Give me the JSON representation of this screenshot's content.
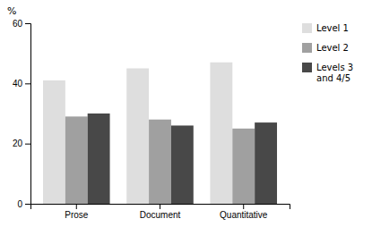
{
  "chart_data": {
    "type": "bar",
    "y_label": "%",
    "categories": [
      "Prose",
      "Document",
      "Quantitative"
    ],
    "series": [
      {
        "name": "Level 1",
        "color": "#dedede",
        "values": [
          41,
          45,
          47
        ]
      },
      {
        "name": "Level 2",
        "color": "#a0a0a0",
        "values": [
          29,
          28,
          25
        ]
      },
      {
        "name": "Levels 3\nand 4/5",
        "color": "#484848",
        "values": [
          30,
          26,
          27
        ]
      }
    ],
    "ylim": [
      0,
      60
    ],
    "yticks": [
      0,
      20,
      40,
      60
    ],
    "grid": false,
    "legend": "right"
  }
}
